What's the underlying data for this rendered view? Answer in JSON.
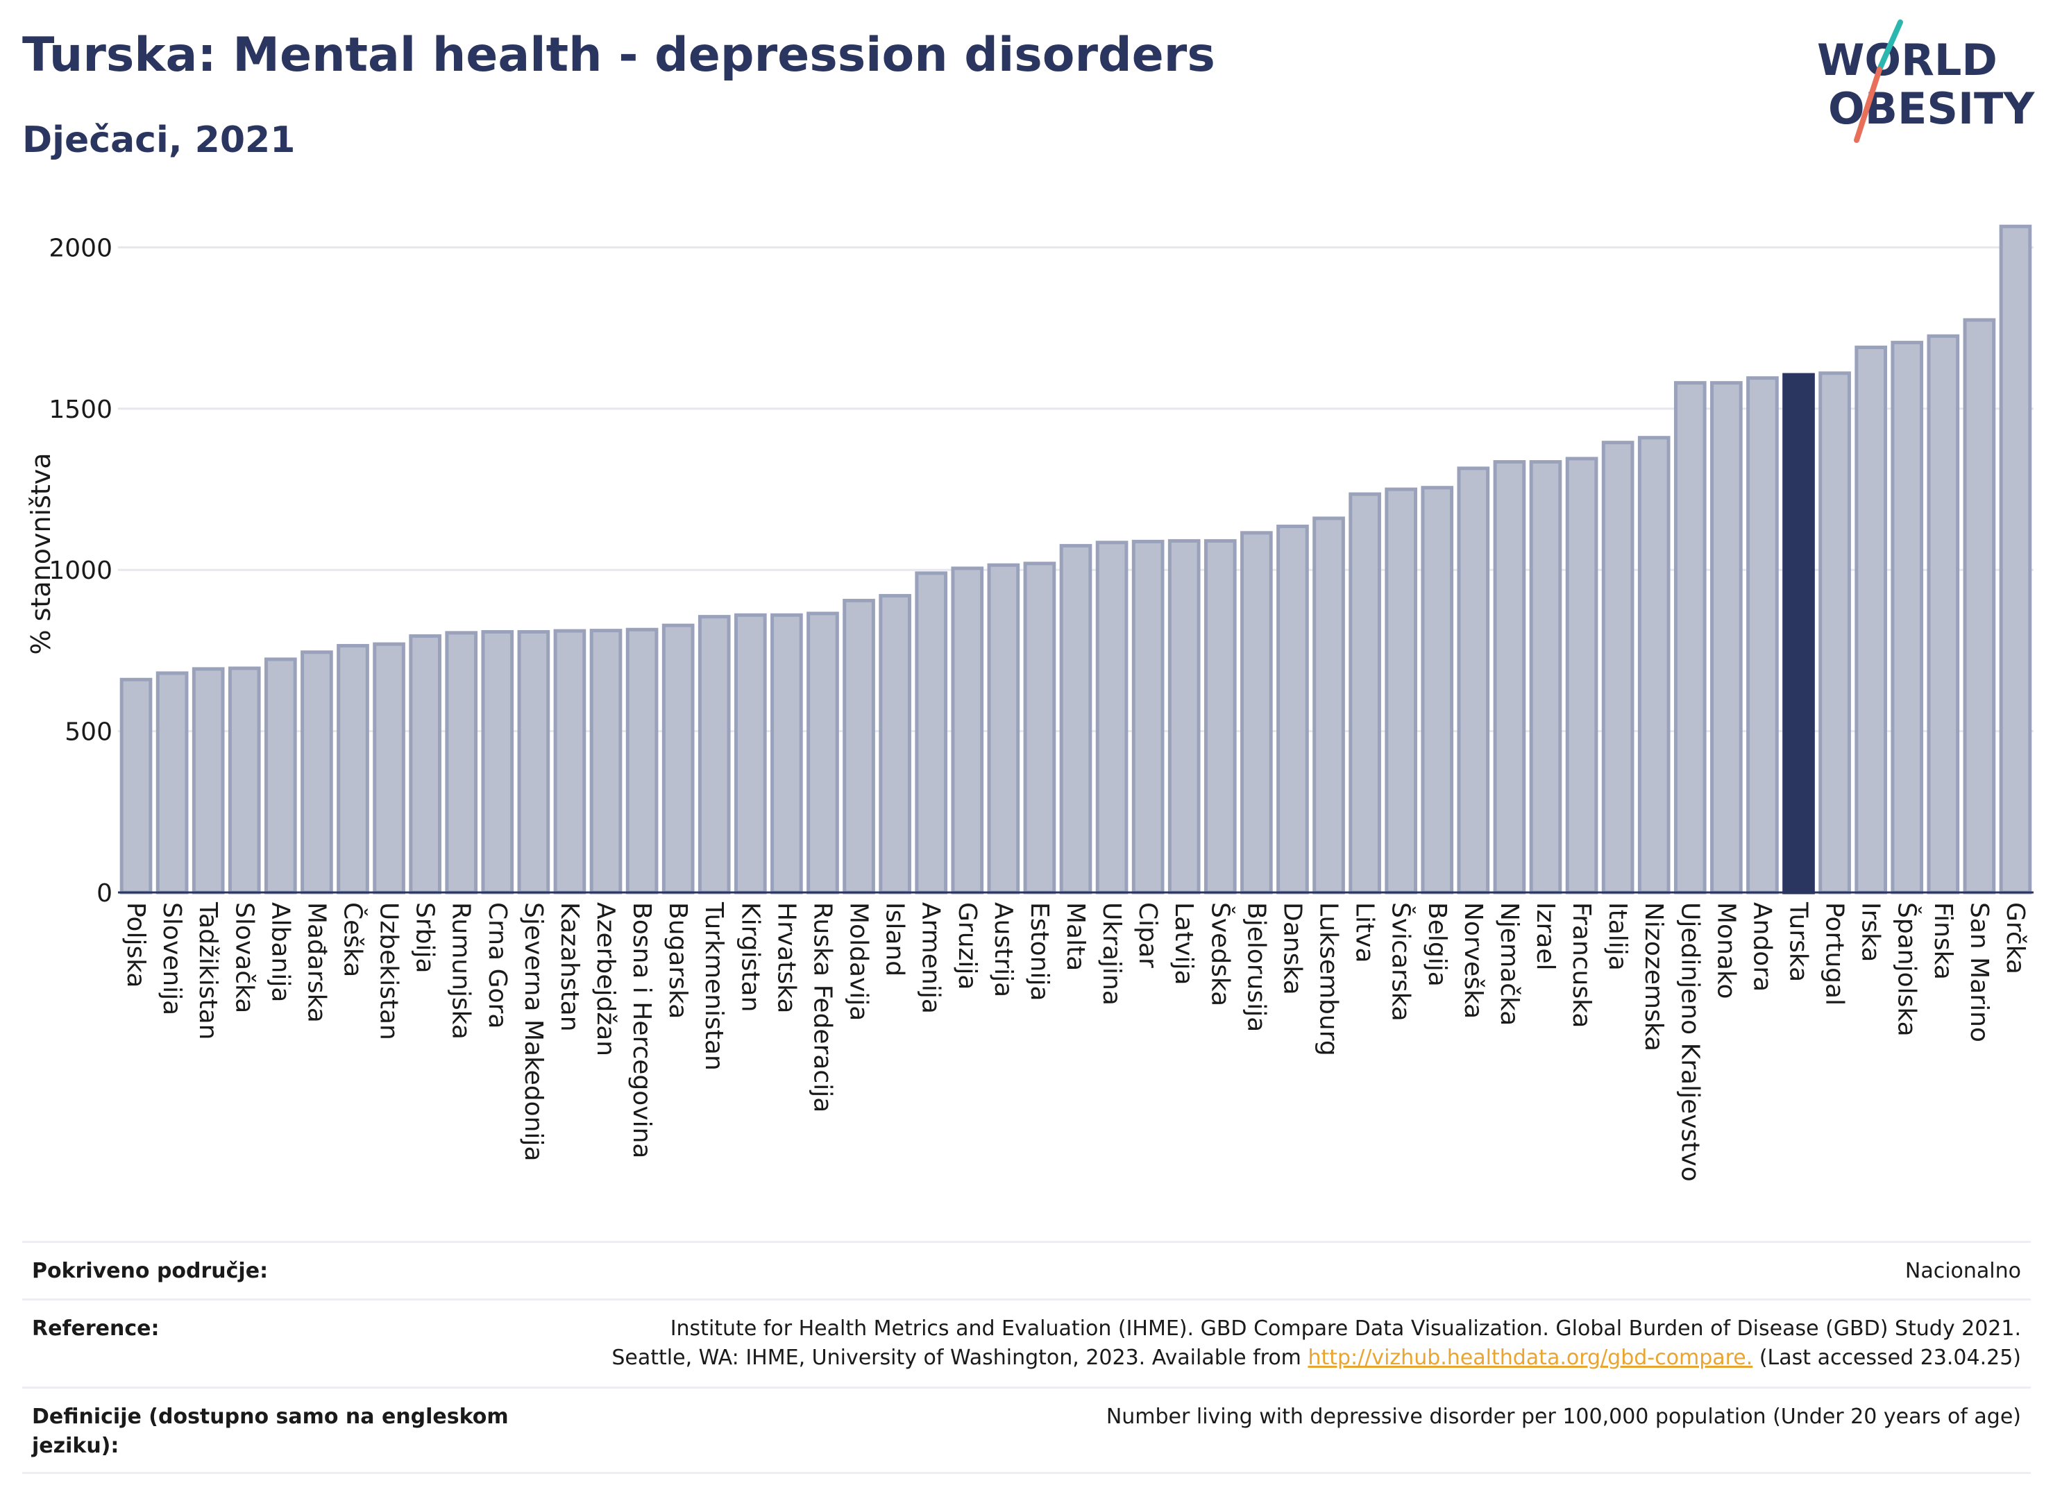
{
  "header": {
    "title": "Turska: Mental health - depression disorders",
    "subtitle": "Dječaci, 2021"
  },
  "logo": {
    "line1": "WORLD",
    "line2": "OBESITY"
  },
  "colors": {
    "bar": "#b9bfcf",
    "bar_stroke": "#9aa2bb",
    "highlight": "#2a3560",
    "text": "#2a3560"
  },
  "chart_data": {
    "type": "bar",
    "title": "Turska: Mental health - depression disorders",
    "subtitle": "Dječaci, 2021",
    "ylabel": "% stanovništva",
    "xlabel": "",
    "ylim": [
      0,
      2100
    ],
    "yticks": [
      0,
      500,
      1000,
      1500,
      2000
    ],
    "grid": true,
    "highlight": "Turska",
    "categories": [
      "Poljska",
      "Slovenija",
      "Tadžikistan",
      "Slovačka",
      "Albanija",
      "Mađarska",
      "Češka",
      "Uzbekistan",
      "Srbija",
      "Rumunjska",
      "Crna Gora",
      "Sjeverna Makedonija",
      "Kazahstan",
      "Azerbejdžan",
      "Bosna i Hercegovina",
      "Bugarska",
      "Turkmenistan",
      "Kirgistan",
      "Hrvatska",
      "Ruska Federacija",
      "Moldavija",
      "Island",
      "Armenija",
      "Gruzija",
      "Austrija",
      "Estonija",
      "Malta",
      "Ukrajina",
      "Cipar",
      "Latvija",
      "Švedska",
      "Bjelorusija",
      "Danska",
      "Luksemburg",
      "Litva",
      "Švicarska",
      "Belgija",
      "Norveška",
      "Njemačka",
      "Izrael",
      "Francuska",
      "Italija",
      "Nizozemska",
      "Ujedinjeno Kraljevstvo",
      "Monako",
      "Andora",
      "Turska",
      "Portugal",
      "Irska",
      "Španjolska",
      "Finska",
      "San Marino",
      "Grčka"
    ],
    "values": [
      660,
      680,
      693,
      695,
      723,
      745,
      765,
      770,
      795,
      805,
      808,
      808,
      811,
      812,
      815,
      828,
      855,
      860,
      860,
      865,
      905,
      920,
      990,
      1005,
      1015,
      1020,
      1075,
      1085,
      1088,
      1090,
      1090,
      1115,
      1135,
      1160,
      1235,
      1250,
      1255,
      1315,
      1335,
      1335,
      1345,
      1395,
      1410,
      1580,
      1580,
      1595,
      1605,
      1610,
      1690,
      1705,
      1725,
      1775,
      2065
    ]
  },
  "info": {
    "coverage_label": "Pokriveno područje:",
    "coverage_value": "Nacionalno",
    "reference_label": "Reference:",
    "reference_line1": "Institute for Health Metrics and Evaluation (IHME). GBD Compare Data Visualization. Global Burden of Disease (GBD) Study 2021.",
    "reference_line2_pre": "Seattle, WA: IHME, University of Washington, 2023. Available from ",
    "reference_link": "http://vizhub.healthdata.org/gbd-compare.",
    "reference_line2_post": " (Last accessed 23.04.25)",
    "definition_label_line1": "Definicije (dostupno samo na engleskom",
    "definition_label_line2": "jeziku):",
    "definition_value": "Number living with depressive disorder per 100,000 population (Under 20 years of age)"
  }
}
